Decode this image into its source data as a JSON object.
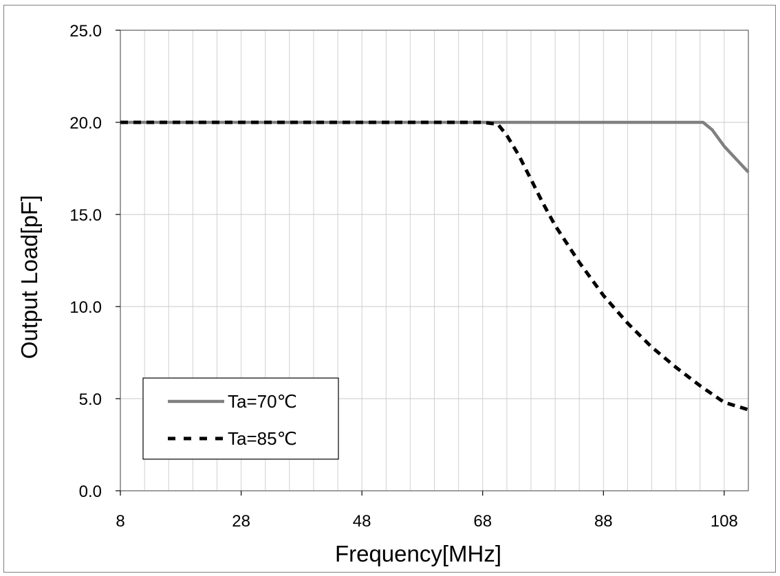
{
  "chart_data": {
    "type": "line",
    "title": "",
    "xlabel": "Frequency[MHz]",
    "ylabel": "Output Load[pF]",
    "xlim": [
      8,
      112
    ],
    "ylim": [
      0,
      25
    ],
    "x_ticks": [
      8,
      28,
      48,
      68,
      88,
      108
    ],
    "x_tick_labels": [
      "8",
      "28",
      "48",
      "68",
      "88",
      "108"
    ],
    "y_ticks": [
      0,
      5,
      10,
      15,
      20,
      25
    ],
    "y_tick_labels": [
      "0.0",
      "5.0",
      "10.0",
      "15.0",
      "20.0",
      "25.0"
    ],
    "x_minor_grid_step": 4,
    "grid": true,
    "legend_position": "bottom-left",
    "series": [
      {
        "name": "Ta=70℃",
        "style": "solid",
        "color": "#808080",
        "x": [
          8,
          68,
          100,
          104.5,
          106,
          108,
          110,
          112
        ],
        "y": [
          20.0,
          20.0,
          20.0,
          20.0,
          19.6,
          18.7,
          18.0,
          17.3
        ]
      },
      {
        "name": "Ta=85℃",
        "style": "dashed",
        "color": "#000000",
        "x": [
          8,
          68,
          70.5,
          72,
          74,
          76,
          78,
          80,
          84,
          88,
          92,
          96,
          100,
          104,
          108,
          112
        ],
        "y": [
          20.0,
          20.0,
          19.9,
          19.3,
          18.2,
          16.9,
          15.6,
          14.4,
          12.4,
          10.6,
          9.1,
          7.8,
          6.7,
          5.7,
          4.8,
          4.4
        ]
      }
    ]
  }
}
